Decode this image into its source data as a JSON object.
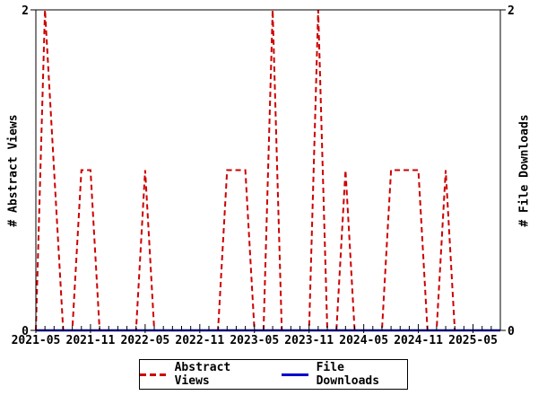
{
  "chart_data": {
    "type": "line",
    "title": "",
    "xlabel": "",
    "ylabel_left": "# Abstract Views",
    "ylabel_right": "# File Downloads",
    "ylim": [
      0,
      2
    ],
    "y_tick_labels": [
      "0",
      "2"
    ],
    "grid": false,
    "legend_position": "bottom-center",
    "x_tick_labels": [
      "2021-05",
      "2021-11",
      "2022-05",
      "2022-11",
      "2023-05",
      "2023-11",
      "2024-05",
      "2024-11",
      "2025-05"
    ],
    "x": [
      "2021-05",
      "2021-06",
      "2021-07",
      "2021-08",
      "2021-09",
      "2021-10",
      "2021-11",
      "2021-12",
      "2022-01",
      "2022-02",
      "2022-03",
      "2022-04",
      "2022-05",
      "2022-06",
      "2022-07",
      "2022-08",
      "2022-09",
      "2022-10",
      "2022-11",
      "2022-12",
      "2023-01",
      "2023-02",
      "2023-03",
      "2023-04",
      "2023-05",
      "2023-06",
      "2023-07",
      "2023-08",
      "2023-09",
      "2023-10",
      "2023-11",
      "2023-12",
      "2024-01",
      "2024-02",
      "2024-03",
      "2024-04",
      "2024-05",
      "2024-06",
      "2024-07",
      "2024-08",
      "2024-09",
      "2024-10",
      "2024-11",
      "2024-12",
      "2025-01",
      "2025-02",
      "2025-03",
      "2025-04",
      "2025-05",
      "2025-06",
      "2025-07",
      "2025-08"
    ],
    "series": [
      {
        "name": "Abstract Views",
        "color": "#cc0000",
        "style": "dashed",
        "width": 2,
        "values": [
          0,
          2,
          1,
          0,
          0,
          1,
          1,
          0,
          0,
          0,
          0,
          0,
          1,
          0,
          0,
          0,
          0,
          0,
          0,
          0,
          0,
          1,
          1,
          1,
          0,
          0,
          2,
          0,
          0,
          0,
          0,
          2,
          0,
          0,
          1,
          0,
          0,
          0,
          0,
          1,
          1,
          1,
          1,
          0,
          0,
          1,
          0,
          0,
          0,
          0,
          0,
          0
        ]
      },
      {
        "name": "File Downloads",
        "color": "#0000cc",
        "style": "solid",
        "width": 2.5,
        "values": [
          0,
          0,
          0,
          0,
          0,
          0,
          0,
          0,
          0,
          0,
          0,
          0,
          0,
          0,
          0,
          0,
          0,
          0,
          0,
          0,
          0,
          0,
          0,
          0,
          0,
          0,
          0,
          0,
          0,
          0,
          0,
          0,
          0,
          0,
          0,
          0,
          0,
          0,
          0,
          0,
          0,
          0,
          0,
          0,
          0,
          0,
          0,
          0,
          0,
          0,
          0,
          0
        ]
      }
    ]
  },
  "legend": {
    "items": [
      {
        "label": "Abstract Views",
        "color": "#cc0000",
        "style": "dashed"
      },
      {
        "label": "File Downloads",
        "color": "#0000cc",
        "style": "solid"
      }
    ]
  },
  "colors": {
    "axis": "#000000",
    "text": "#000000",
    "background": "#ffffff"
  }
}
